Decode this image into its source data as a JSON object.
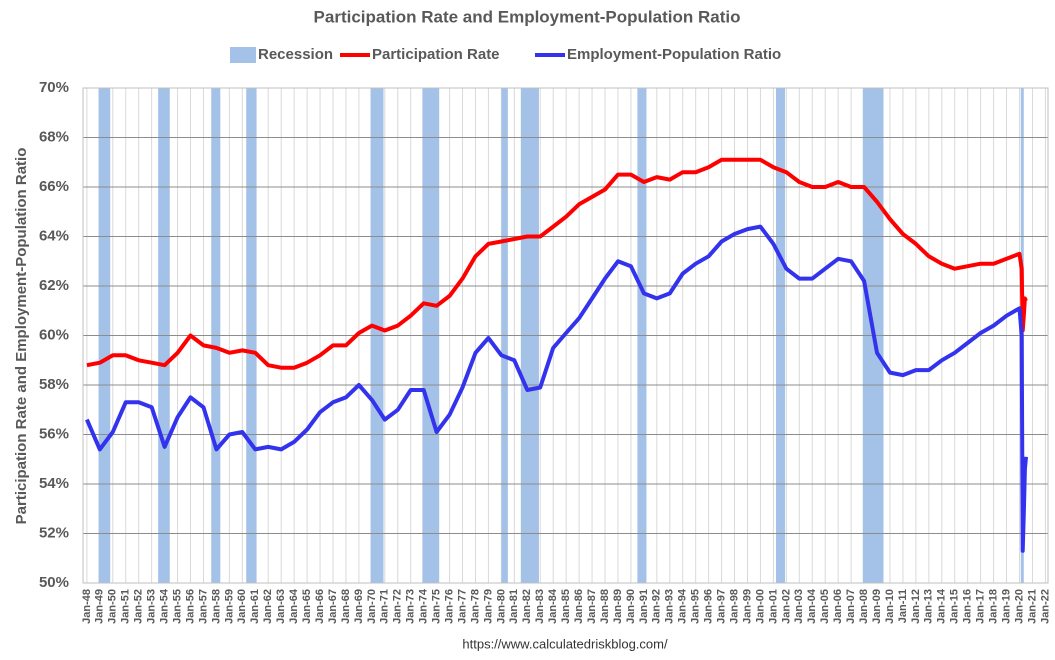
{
  "chart_data": {
    "type": "line",
    "title": "Participation Rate and Employment-Population Ratio",
    "y_label": "Participation Rate and Employment-Population Ratio",
    "source": "https://www.calculatedriskblog.com/",
    "recession": {
      "name": "Recession",
      "color": "#a4c2e8",
      "spans": [
        [
          1948.9,
          1949.8
        ],
        [
          1953.5,
          1954.4
        ],
        [
          1957.6,
          1958.3
        ],
        [
          1960.3,
          1961.1
        ],
        [
          1969.9,
          1970.9
        ],
        [
          1973.9,
          1975.2
        ],
        [
          1980.0,
          1980.5
        ],
        [
          1981.5,
          1982.9
        ],
        [
          1990.5,
          1991.2
        ],
        [
          2001.2,
          2001.9
        ],
        [
          2007.9,
          2009.5
        ],
        [
          2020.1,
          2020.33
        ]
      ]
    },
    "x": [
      1948,
      1949,
      1950,
      1951,
      1952,
      1953,
      1954,
      1955,
      1956,
      1957,
      1958,
      1959,
      1960,
      1961,
      1962,
      1963,
      1964,
      1965,
      1966,
      1967,
      1968,
      1969,
      1970,
      1971,
      1972,
      1973,
      1974,
      1975,
      1976,
      1977,
      1978,
      1979,
      1980,
      1981,
      1982,
      1983,
      1984,
      1985,
      1986,
      1987,
      1988,
      1989,
      1990,
      1991,
      1992,
      1993,
      1994,
      1995,
      1996,
      1997,
      1998,
      1999,
      2000,
      2001,
      2002,
      2003,
      2004,
      2005,
      2006,
      2007,
      2008,
      2009,
      2010,
      2011,
      2012,
      2013,
      2014,
      2015,
      2016,
      2017,
      2018,
      2019,
      2020.0,
      2020.17,
      2020.25,
      2020.33,
      2020.42,
      2020.5
    ],
    "series": [
      {
        "name": "Participation Rate",
        "color": "#ff0000",
        "values": [
          58.8,
          58.9,
          59.2,
          59.2,
          59.0,
          58.9,
          58.8,
          59.3,
          60.0,
          59.6,
          59.5,
          59.3,
          59.4,
          59.3,
          58.8,
          58.7,
          58.7,
          58.9,
          59.2,
          59.6,
          59.6,
          60.1,
          60.4,
          60.2,
          60.4,
          60.8,
          61.3,
          61.2,
          61.6,
          62.3,
          63.2,
          63.7,
          63.8,
          63.9,
          64.0,
          64.0,
          64.4,
          64.8,
          65.3,
          65.6,
          65.9,
          66.5,
          66.5,
          66.2,
          66.4,
          66.3,
          66.6,
          66.6,
          66.8,
          67.1,
          67.1,
          67.1,
          67.1,
          66.8,
          66.6,
          66.2,
          66.0,
          66.0,
          66.2,
          66.0,
          66.0,
          65.4,
          64.7,
          64.1,
          63.7,
          63.2,
          62.9,
          62.7,
          62.8,
          62.9,
          62.9,
          63.1,
          63.3,
          62.7,
          60.2,
          60.8,
          61.5,
          61.4
        ]
      },
      {
        "name": "Employment-Population Ratio",
        "color": "#3333ee",
        "values": [
          56.6,
          55.4,
          56.1,
          57.3,
          57.3,
          57.1,
          55.5,
          56.7,
          57.5,
          57.1,
          55.4,
          56.0,
          56.1,
          55.4,
          55.5,
          55.4,
          55.7,
          56.2,
          56.9,
          57.3,
          57.5,
          58.0,
          57.4,
          56.6,
          57.0,
          57.8,
          57.8,
          56.1,
          56.8,
          57.9,
          59.3,
          59.9,
          59.2,
          59.0,
          57.8,
          57.9,
          59.5,
          60.1,
          60.7,
          61.5,
          62.3,
          63.0,
          62.8,
          61.7,
          61.5,
          61.7,
          62.5,
          62.9,
          63.2,
          63.8,
          64.1,
          64.3,
          64.4,
          63.7,
          62.7,
          62.3,
          62.3,
          62.7,
          63.1,
          63.0,
          62.2,
          59.3,
          58.5,
          58.4,
          58.6,
          58.6,
          59.0,
          59.3,
          59.7,
          60.1,
          60.4,
          60.8,
          61.1,
          60.0,
          51.3,
          52.8,
          54.6,
          55.1
        ]
      }
    ],
    "xlim": [
      1947.7,
      2022.2
    ],
    "xticks": [
      {
        "value": 1948,
        "label": "Jan-48"
      },
      {
        "value": 1949,
        "label": "Jan-49"
      },
      {
        "value": 1950,
        "label": "Jan-50"
      },
      {
        "value": 1951,
        "label": "Jan-51"
      },
      {
        "value": 1952,
        "label": "Jan-52"
      },
      {
        "value": 1953,
        "label": "Jan-53"
      },
      {
        "value": 1954,
        "label": "Jan-54"
      },
      {
        "value": 1955,
        "label": "Jan-55"
      },
      {
        "value": 1956,
        "label": "Jan-56"
      },
      {
        "value": 1957,
        "label": "Jan-57"
      },
      {
        "value": 1958,
        "label": "Jan-58"
      },
      {
        "value": 1959,
        "label": "Jan-59"
      },
      {
        "value": 1960,
        "label": "Jan-60"
      },
      {
        "value": 1961,
        "label": "Jan-61"
      },
      {
        "value": 1962,
        "label": "Jan-62"
      },
      {
        "value": 1963,
        "label": "Jan-63"
      },
      {
        "value": 1964,
        "label": "Jan-64"
      },
      {
        "value": 1965,
        "label": "Jan-65"
      },
      {
        "value": 1966,
        "label": "Jan-66"
      },
      {
        "value": 1967,
        "label": "Jan-67"
      },
      {
        "value": 1968,
        "label": "Jan-68"
      },
      {
        "value": 1969,
        "label": "Jan-69"
      },
      {
        "value": 1970,
        "label": "Jan-70"
      },
      {
        "value": 1971,
        "label": "Jan-71"
      },
      {
        "value": 1972,
        "label": "Jan-72"
      },
      {
        "value": 1973,
        "label": "Jan-73"
      },
      {
        "value": 1974,
        "label": "Jan-74"
      },
      {
        "value": 1975,
        "label": "Jan-75"
      },
      {
        "value": 1976,
        "label": "Jan-76"
      },
      {
        "value": 1977,
        "label": "Jan-77"
      },
      {
        "value": 1978,
        "label": "Jan-78"
      },
      {
        "value": 1979,
        "label": "Jan-79"
      },
      {
        "value": 1980,
        "label": "Jan-80"
      },
      {
        "value": 1981,
        "label": "Jan-81"
      },
      {
        "value": 1982,
        "label": "Jan-82"
      },
      {
        "value": 1983,
        "label": "Jan-83"
      },
      {
        "value": 1984,
        "label": "Jan-84"
      },
      {
        "value": 1985,
        "label": "Jan-85"
      },
      {
        "value": 1986,
        "label": "Jan-86"
      },
      {
        "value": 1987,
        "label": "Jan-87"
      },
      {
        "value": 1988,
        "label": "Jan-88"
      },
      {
        "value": 1989,
        "label": "Jan-89"
      },
      {
        "value": 1990,
        "label": "Jan-90"
      },
      {
        "value": 1991,
        "label": "Jan-91"
      },
      {
        "value": 1992,
        "label": "Jan-92"
      },
      {
        "value": 1993,
        "label": "Jan-93"
      },
      {
        "value": 1994,
        "label": "Jan-94"
      },
      {
        "value": 1995,
        "label": "Jan-95"
      },
      {
        "value": 1996,
        "label": "Jan-96"
      },
      {
        "value": 1997,
        "label": "Jan-97"
      },
      {
        "value": 1998,
        "label": "Jan-98"
      },
      {
        "value": 1999,
        "label": "Jan-99"
      },
      {
        "value": 2000,
        "label": "Jan-00"
      },
      {
        "value": 2001,
        "label": "Jan-01"
      },
      {
        "value": 2002,
        "label": "Jan-02"
      },
      {
        "value": 2003,
        "label": "Jan-03"
      },
      {
        "value": 2004,
        "label": "Jan-04"
      },
      {
        "value": 2005,
        "label": "Jan-05"
      },
      {
        "value": 2006,
        "label": "Jan-06"
      },
      {
        "value": 2007,
        "label": "Jan-07"
      },
      {
        "value": 2008,
        "label": "Jan-08"
      },
      {
        "value": 2009,
        "label": "Jan-09"
      },
      {
        "value": 2010,
        "label": "Jan-10"
      },
      {
        "value": 2011,
        "label": "Jan-11"
      },
      {
        "value": 2012,
        "label": "Jan-12"
      },
      {
        "value": 2013,
        "label": "Jan-13"
      },
      {
        "value": 2014,
        "label": "Jan-14"
      },
      {
        "value": 2015,
        "label": "Jan-15"
      },
      {
        "value": 2016,
        "label": "Jan-16"
      },
      {
        "value": 2017,
        "label": "Jan-17"
      },
      {
        "value": 2018,
        "label": "Jan-18"
      },
      {
        "value": 2019,
        "label": "Jan-19"
      },
      {
        "value": 2020,
        "label": "Jan-20"
      },
      {
        "value": 2021,
        "label": "Jan-21"
      },
      {
        "value": 2022,
        "label": "Jan-22"
      }
    ],
    "ylim": [
      50,
      70
    ],
    "yticks": [
      {
        "value": 50,
        "label": "50%"
      },
      {
        "value": 52,
        "label": "52%"
      },
      {
        "value": 54,
        "label": "54%"
      },
      {
        "value": 56,
        "label": "56%"
      },
      {
        "value": 58,
        "label": "58%"
      },
      {
        "value": 60,
        "label": "60%"
      },
      {
        "value": 62,
        "label": "62%"
      },
      {
        "value": 64,
        "label": "64%"
      },
      {
        "value": 66,
        "label": "66%"
      },
      {
        "value": 68,
        "label": "68%"
      },
      {
        "value": 70,
        "label": "70%"
      }
    ],
    "grid": true,
    "legend": "top"
  }
}
